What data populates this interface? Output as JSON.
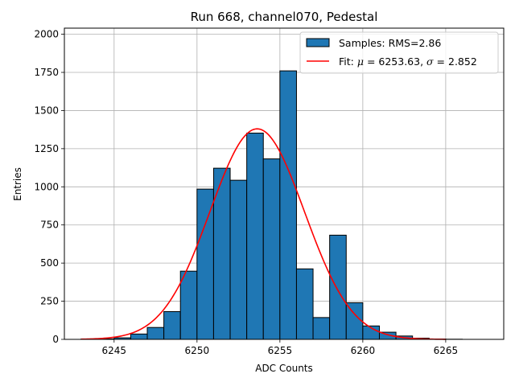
{
  "chart_data": {
    "type": "bar",
    "title": "Run 668, channel070, Pedestal",
    "xlabel": "ADC Counts",
    "ylabel": "Entries",
    "xlim": [
      6242.0,
      6268.5
    ],
    "ylim": [
      0,
      2040
    ],
    "xticks": [
      6245,
      6250,
      6255,
      6260,
      6265
    ],
    "yticks": [
      0,
      250,
      500,
      750,
      1000,
      1250,
      1500,
      1750,
      2000
    ],
    "grid": true,
    "bins": {
      "edges": [
        6243,
        6244,
        6245,
        6246,
        6247,
        6248,
        6249,
        6250,
        6251,
        6252,
        6253,
        6254,
        6255,
        6256,
        6257,
        6258,
        6259,
        6260,
        6261,
        6262,
        6263,
        6264,
        6265,
        6266,
        6267
      ],
      "counts": [
        2,
        3,
        10,
        35,
        78,
        182,
        447,
        985,
        1122,
        1043,
        1352,
        1183,
        1760,
        462,
        143,
        683,
        240,
        88,
        47,
        22,
        8,
        2,
        1,
        0
      ]
    },
    "fit": {
      "mu": 6253.63,
      "sigma": 2.852,
      "amplitude": 1380,
      "x_range": [
        6243.0,
        6265.0
      ]
    },
    "legend": {
      "position": "top-right",
      "entries": [
        {
          "label": "Samples: RMS=2.86",
          "color": "#1f77b4",
          "kind": "patch"
        },
        {
          "label_prefix": "Fit: ",
          "mu_symbol": "μ",
          "mu_text": " = 6253.63, ",
          "sigma_symbol": "σ",
          "sigma_text": " = 2.852",
          "color": "#ff0000",
          "kind": "line"
        }
      ]
    },
    "colors": {
      "bars": "#1f77b4",
      "fit": "#ff0000"
    }
  }
}
